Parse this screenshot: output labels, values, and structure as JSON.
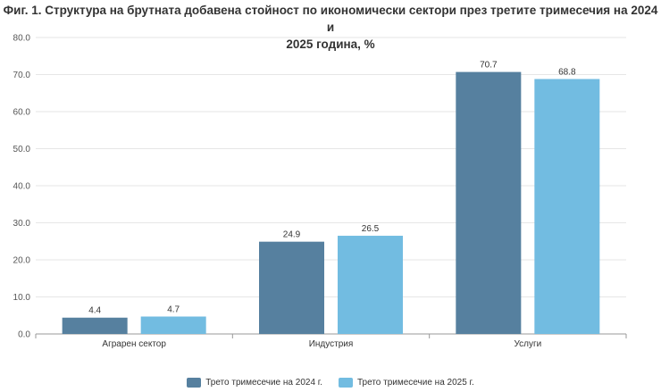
{
  "chart_data": {
    "type": "bar",
    "title_line1": "Фиг. 1. Структура на брутната добавена стойност по икономически сектори през третите тримесечия на 2024 и",
    "title_line2": "2025 година, %",
    "categories": [
      "Аграрен сектор",
      "Индустрия",
      "Услуги"
    ],
    "series": [
      {
        "name": "Трето тримесечие на 2024 г.",
        "values": [
          4.4,
          24.9,
          70.7
        ],
        "color": "#56809f"
      },
      {
        "name": "Трето тримесечие на 2025 г.",
        "values": [
          4.7,
          26.5,
          68.8
        ],
        "color": "#72bce1"
      }
    ],
    "yticks": [
      "0.0",
      "10.0",
      "20.0",
      "30.0",
      "40.0",
      "50.0",
      "60.0",
      "70.0",
      "80.0"
    ],
    "ylim": [
      0,
      80
    ],
    "xlabel": "",
    "ylabel": "",
    "legend_position": "bottom-center",
    "grid": true
  }
}
